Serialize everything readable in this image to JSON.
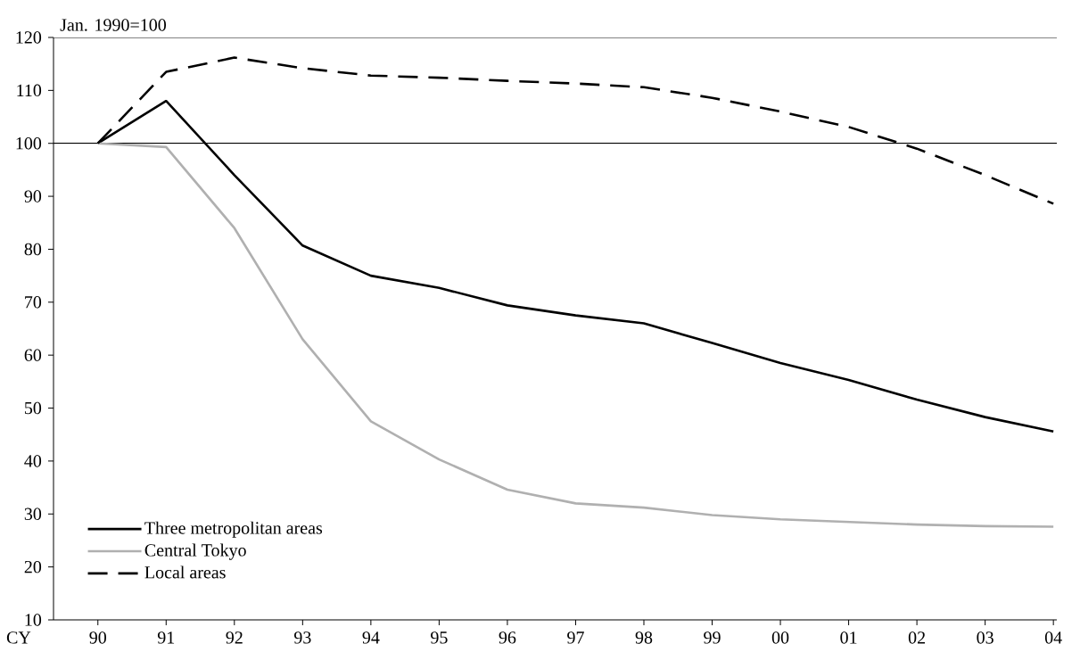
{
  "chart_data": {
    "type": "line",
    "ylabel": "Jan. 1990=100",
    "xlabel": "CY",
    "categories": [
      "90",
      "91",
      "92",
      "93",
      "94",
      "95",
      "96",
      "97",
      "98",
      "99",
      "00",
      "01",
      "02",
      "03",
      "04"
    ],
    "ylim": [
      10,
      120
    ],
    "yticks": [
      10,
      20,
      30,
      40,
      50,
      60,
      70,
      80,
      90,
      100,
      110,
      120
    ],
    "grid": false,
    "legend": "bottom left",
    "marker": "none",
    "ref_lines": [
      {
        "axis": "y",
        "value": 100,
        "color": "#000000",
        "line_style": "solid"
      }
    ],
    "series": [
      {
        "name": "Three metropolitan areas",
        "color": "#000000",
        "line_style": "solid",
        "values": [
          100,
          108,
          94,
          80.7,
          75,
          72.7,
          69.4,
          67.5,
          66,
          62.3,
          58.5,
          55.3,
          51.6,
          48.3,
          45.6
        ]
      },
      {
        "name": "Central Tokyo",
        "color": "#b0b0b0",
        "line_style": "solid",
        "values": [
          100,
          99.3,
          84,
          63,
          47.5,
          40.3,
          34.6,
          32,
          31.2,
          29.8,
          29,
          28.5,
          28,
          27.7,
          27.6
        ]
      },
      {
        "name": "Local areas",
        "color": "#000000",
        "line_style": "dashed",
        "values": [
          100,
          113.5,
          116.2,
          114.2,
          112.8,
          112.4,
          111.8,
          111.3,
          110.6,
          108.6,
          106,
          103.1,
          99,
          94,
          88.6
        ]
      }
    ]
  }
}
